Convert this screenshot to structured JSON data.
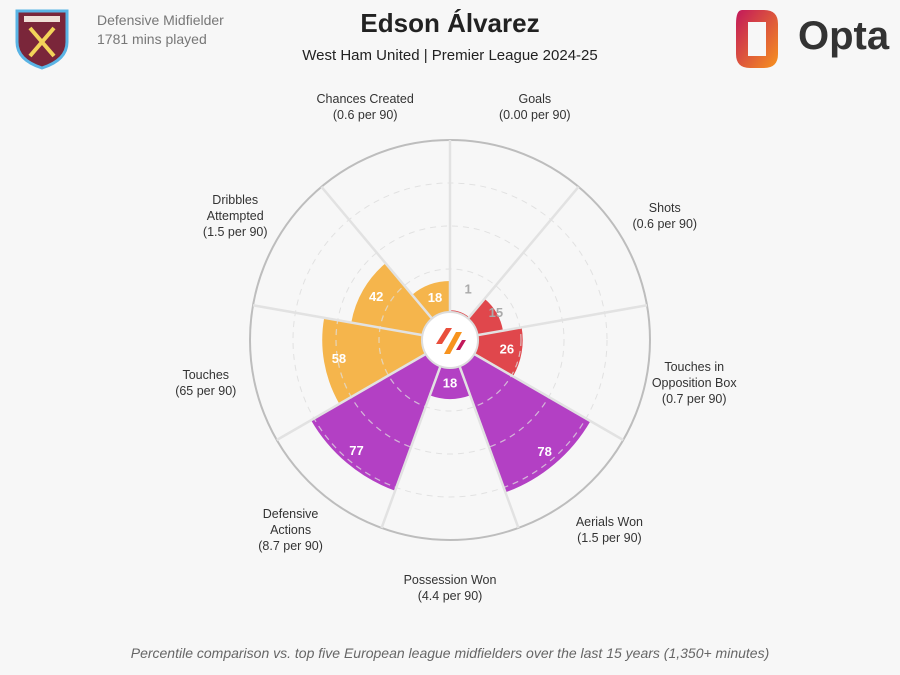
{
  "header": {
    "position": "Defensive Midfielder",
    "minutes": "1781 mins played",
    "brand": "Opta"
  },
  "chart_data": {
    "type": "pizza",
    "title": "Edson Álvarez",
    "subtitle": "West Ham United | Premier League 2024-25",
    "categories": [
      "Goals",
      "Shots",
      "Touches in\nOpposition Box",
      "Aerials Won",
      "Possession Won",
      "Defensive\nActions",
      "Touches",
      "Dribbles\nAttempted",
      "Chances Created"
    ],
    "per90_labels": [
      "(0.00 per 90)",
      "(0.6 per 90)",
      "(0.7 per 90)",
      "(1.5 per 90)",
      "(4.4 per 90)",
      "(8.7 per 90)",
      "(65 per 90)",
      "(1.5 per 90)",
      "(0.6 per 90)"
    ],
    "values": [
      1,
      15,
      26,
      78,
      18,
      77,
      58,
      42,
      18
    ],
    "colors": [
      "#e0474c",
      "#e0474c",
      "#e0474c",
      "#b340c4",
      "#b340c4",
      "#b340c4",
      "#f5b54c",
      "#f5b54c",
      "#f5b54c"
    ],
    "rlim": [
      0,
      100
    ],
    "rticks": [
      25,
      50,
      75
    ],
    "grid": true,
    "note": "Percentile comparison vs. top five European league midfielders over the last 15 years (1,350+ minutes)"
  }
}
